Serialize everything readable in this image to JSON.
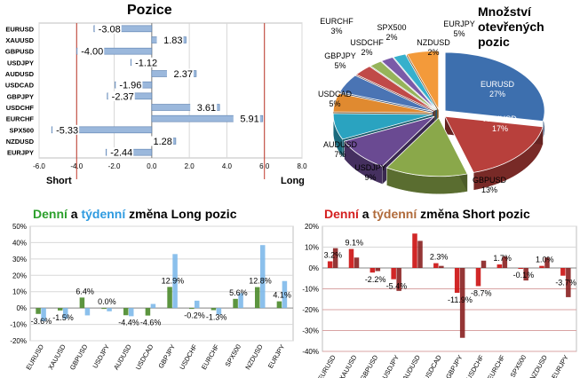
{
  "charts": {
    "positions": {
      "title": "Pozice",
      "axis_left_label": "Short",
      "axis_right_label": "Long",
      "chart_data": {
        "type": "bar",
        "orientation": "horizontal",
        "categories": [
          "EURUSD",
          "XAUUSD",
          "GBPUSD",
          "USDJPY",
          "AUDUSD",
          "USDCAD",
          "GBPJPY",
          "USDCHF",
          "EURCHF",
          "SPX500",
          "NZDUSD",
          "EURJPY"
        ],
        "values": [
          -3.08,
          1.83,
          -4.0,
          -1.12,
          2.37,
          -1.96,
          -2.37,
          3.61,
          5.91,
          -5.33,
          1.28,
          -2.44
        ],
        "value_labels": [
          "-3.08",
          "1.83",
          "-4.00",
          "-1.12",
          "2.37",
          "-1.96",
          "-2.37",
          "3.61",
          "5.91",
          "-5.33",
          "1.28",
          "-2.44"
        ],
        "xlim": [
          -6.0,
          8.0
        ],
        "xticks": [
          "-6.0",
          "-4.0",
          "-2.0",
          "0.0",
          "2.0",
          "4.0",
          "6.0",
          "8.0"
        ],
        "reference_lines": [
          -4.0,
          6.0
        ],
        "bar_color": "#9bb8dc"
      }
    },
    "open_positions": {
      "title_lines": [
        "Množství",
        "otevřených",
        "pozic"
      ],
      "chart_data": {
        "type": "pie",
        "style": "3d-exploded",
        "slices": [
          {
            "label": "EURUSD",
            "pct": "27%",
            "value": 27,
            "color": "#3d6fae"
          },
          {
            "label": "XAUUSD",
            "pct": "17%",
            "value": 17,
            "color": "#b8403c"
          },
          {
            "label": "GBPUSD",
            "pct": "13%",
            "value": 13,
            "color": "#8aa84a"
          },
          {
            "label": "USDJPY",
            "pct": "9%",
            "value": 9,
            "color": "#6a4a92"
          },
          {
            "label": "AUDUSD",
            "pct": "7%",
            "value": 7,
            "color": "#2aa3c0"
          },
          {
            "label": "USDCAD",
            "pct": "5%",
            "value": 5,
            "color": "#e08a30"
          },
          {
            "label": "GBPJPY",
            "pct": "5%",
            "value": 5,
            "color": "#4a74b4"
          },
          {
            "label": "EURCHF",
            "pct": "3%",
            "value": 3,
            "color": "#c04a48"
          },
          {
            "label": "USDCHF",
            "pct": "2%",
            "value": 2,
            "color": "#96b45a"
          },
          {
            "label": "SPX500",
            "pct": "2%",
            "value": 2,
            "color": "#7a5aa8"
          },
          {
            "label": "NZDUSD",
            "pct": "2%",
            "value": 2,
            "color": "#36b0cc"
          },
          {
            "label": "EURJPY",
            "pct": "5%",
            "value": 5,
            "color": "#f39a3a"
          }
        ]
      }
    },
    "long_change": {
      "title_parts": [
        {
          "text": "Denní",
          "color": "#2ca02c"
        },
        {
          "text": " a ",
          "color": "#000000"
        },
        {
          "text": "týdenní",
          "color": "#2f9be0"
        },
        {
          "text": " změna Long pozic",
          "color": "#000000"
        }
      ],
      "chart_data": {
        "type": "bar",
        "categories": [
          "EURUSD",
          "XAUUSD",
          "GBPUSD",
          "USDJPY",
          "AUDUSD",
          "USDCAD",
          "GBPJPY",
          "USDCHF",
          "EURCHF",
          "SPX500",
          "NZDUSD",
          "EURJPY"
        ],
        "series": [
          {
            "name": "Denní",
            "color": "#4a8a2a",
            "values": [
              -3.6,
              -1.5,
              6.4,
              0.0,
              -4.4,
              -4.6,
              12.9,
              -0.2,
              -1.3,
              5.6,
              12.8,
              4.1
            ]
          },
          {
            "name": "Týdenní",
            "color": "#7eb9ea",
            "values": [
              -8.0,
              -6.5,
              -4.5,
              -2.0,
              -5.0,
              2.5,
              33.0,
              4.5,
              -4.0,
              9.0,
              38.5,
              16.5
            ]
          }
        ],
        "labels": [
          "-3.6%",
          "-1.5%",
          "6.4%",
          "0.0%",
          "-4.4%",
          "-4.6%",
          "12.9%",
          "-0.2%",
          "-1.3%",
          "5.6%",
          "12.8%",
          "4.1%"
        ],
        "ylim": [
          -20,
          50
        ],
        "yticks": [
          "-20%",
          "-10%",
          "0%",
          "10%",
          "20%",
          "30%",
          "40%",
          "50%"
        ]
      }
    },
    "short_change": {
      "title_parts": [
        {
          "text": "Denní",
          "color": "#d42020"
        },
        {
          "text": " a ",
          "color": "#000000"
        },
        {
          "text": "týdenní",
          "color": "#b06a3a"
        },
        {
          "text": " změna Short pozic",
          "color": "#000000"
        }
      ],
      "chart_data": {
        "type": "bar",
        "categories": [
          "EURUSD",
          "XAUUSD",
          "GBPUSD",
          "USDJPY",
          "AUDUSD",
          "USDCAD",
          "GBPJPY",
          "USDCHF",
          "EURCHF",
          "SPX500",
          "NZDUSD",
          "EURJPY"
        ],
        "series": [
          {
            "name": "Denní",
            "color": "#cc1010",
            "values": [
              3.2,
              9.1,
              -2.2,
              -5.4,
              16.5,
              2.3,
              -11.9,
              -8.7,
              1.7,
              -0.1,
              1.0,
              -3.7
            ]
          },
          {
            "name": "Týdenní",
            "color": "#8a2020",
            "values": [
              9.5,
              5.0,
              -1.5,
              -11.0,
              13.0,
              1.0,
              -33.5,
              3.5,
              5.5,
              -6.0,
              5.0,
              -14.0
            ]
          }
        ],
        "labels": [
          "3.2%",
          "9.1%",
          "-2.2%",
          "-5.4%",
          "",
          "2.3%",
          "-11.9%",
          "-8.7%",
          "1.7%",
          "-0.1%",
          "1.0%",
          "-3.7%"
        ],
        "ylim": [
          -40,
          20
        ],
        "yticks": [
          "-40%",
          "-30%",
          "-20%",
          "-10%",
          "0%",
          "10%",
          "20%"
        ]
      }
    }
  }
}
